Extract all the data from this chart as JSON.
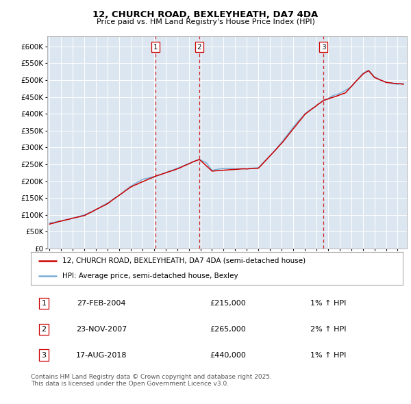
{
  "title": "12, CHURCH ROAD, BEXLEYHEATH, DA7 4DA",
  "subtitle": "Price paid vs. HM Land Registry's House Price Index (HPI)",
  "ylim": [
    0,
    630000
  ],
  "yticks": [
    0,
    50000,
    100000,
    150000,
    200000,
    250000,
    300000,
    350000,
    400000,
    450000,
    500000,
    550000,
    600000
  ],
  "ytick_labels": [
    "£0",
    "£50K",
    "£100K",
    "£150K",
    "£200K",
    "£250K",
    "£300K",
    "£350K",
    "£400K",
    "£450K",
    "£500K",
    "£550K",
    "£600K"
  ],
  "xlim_start": 1994.8,
  "xlim_end": 2025.8,
  "background_color": "#ffffff",
  "plot_bg_color": "#dce6f0",
  "grid_color": "#ffffff",
  "transactions": [
    {
      "num": 1,
      "date": "27-FEB-2004",
      "price": 215000,
      "year": 2004.15,
      "hpi_change": "1% ↑ HPI"
    },
    {
      "num": 2,
      "date": "23-NOV-2007",
      "price": 265000,
      "year": 2007.9,
      "hpi_change": "2% ↑ HPI"
    },
    {
      "num": 3,
      "date": "17-AUG-2018",
      "price": 440000,
      "year": 2018.62,
      "hpi_change": "1% ↑ HPI"
    }
  ],
  "legend_line1": "12, CHURCH ROAD, BEXLEYHEATH, DA7 4DA (semi-detached house)",
  "legend_line2": "HPI: Average price, semi-detached house, Bexley",
  "footnote": "Contains HM Land Registry data © Crown copyright and database right 2025.\nThis data is licensed under the Open Government Licence v3.0.",
  "red_color": "#cc0000",
  "blue_color": "#7aadd4",
  "dashed_color": "#cc0000",
  "hpi_keypoints": [
    [
      1995.0,
      75000
    ],
    [
      1996.0,
      82000
    ],
    [
      1997.0,
      90000
    ],
    [
      1998.0,
      100000
    ],
    [
      1999.0,
      115000
    ],
    [
      2000.0,
      135000
    ],
    [
      2001.0,
      158000
    ],
    [
      2002.0,
      185000
    ],
    [
      2003.0,
      205000
    ],
    [
      2004.15,
      215000
    ],
    [
      2005.0,
      225000
    ],
    [
      2006.0,
      238000
    ],
    [
      2007.9,
      265000
    ],
    [
      2008.5,
      255000
    ],
    [
      2009.0,
      232000
    ],
    [
      2010.0,
      238000
    ],
    [
      2011.0,
      237000
    ],
    [
      2012.0,
      237000
    ],
    [
      2013.0,
      240000
    ],
    [
      2014.0,
      275000
    ],
    [
      2015.0,
      315000
    ],
    [
      2016.0,
      360000
    ],
    [
      2017.0,
      400000
    ],
    [
      2018.62,
      440000
    ],
    [
      2019.0,
      445000
    ],
    [
      2019.5,
      455000
    ],
    [
      2020.0,
      460000
    ],
    [
      2021.0,
      480000
    ],
    [
      2022.0,
      520000
    ],
    [
      2022.5,
      530000
    ],
    [
      2023.0,
      510000
    ],
    [
      2023.5,
      500000
    ],
    [
      2024.0,
      495000
    ],
    [
      2024.5,
      490000
    ],
    [
      2025.0,
      488000
    ],
    [
      2025.5,
      490000
    ]
  ],
  "red_offset_keypoints": [
    [
      1995.0,
      73000
    ],
    [
      1998.0,
      98000
    ],
    [
      2000.0,
      133000
    ],
    [
      2002.0,
      183000
    ],
    [
      2004.15,
      215000
    ],
    [
      2006.0,
      236000
    ],
    [
      2007.9,
      265000
    ],
    [
      2009.0,
      230000
    ],
    [
      2011.0,
      235000
    ],
    [
      2013.0,
      238000
    ],
    [
      2015.0,
      312000
    ],
    [
      2017.0,
      398000
    ],
    [
      2018.62,
      440000
    ],
    [
      2019.5,
      450000
    ],
    [
      2020.5,
      462000
    ],
    [
      2022.0,
      518000
    ],
    [
      2022.5,
      528000
    ],
    [
      2023.0,
      508000
    ],
    [
      2024.0,
      493000
    ],
    [
      2025.5,
      488000
    ]
  ]
}
